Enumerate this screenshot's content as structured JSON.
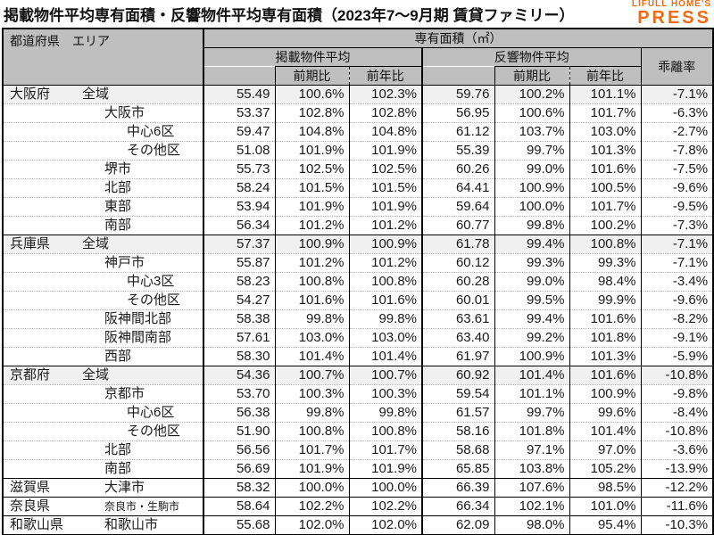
{
  "title": "掲載物件平均専有面積・反響物件平均専有面積（2023年7～9月期 賃貸ファミリー）",
  "logo": {
    "top": "LIFULL HOME'S",
    "main": "PRESS",
    "color": "#f26a14"
  },
  "colors": {
    "header_bg": "#bfbfbf",
    "highlight_row_bg": "#f0f0f0",
    "border": "#000000",
    "logo_orange": "#f26a14"
  },
  "header": {
    "corner": "都道府県　エリア",
    "area_title": "専有面積（㎡）",
    "listed_avg": "掲載物件平均",
    "inquiry_avg": "反響物件平均",
    "gap_rate": "乖離率",
    "qoq": "前期比",
    "yoy": "前年比"
  },
  "chart_data": {
    "type": "table",
    "title": "掲載物件平均専有面積・反響物件平均専有面積（2023年7～9月期 賃貸ファミリー）",
    "columns": [
      "都道府県",
      "エリア",
      "掲載物件平均 専有面積(㎡)",
      "掲載 前期比",
      "掲載 前年比",
      "反響物件平均 専有面積(㎡)",
      "反響 前期比",
      "反響 前年比",
      "乖離率"
    ],
    "rows": [
      {
        "pref": "大阪府",
        "area": "全域",
        "level": 1,
        "group_start": true,
        "highlight": true,
        "listed": "55.49",
        "listed_qoq": "100.6%",
        "listed_yoy": "102.3%",
        "inq": "59.76",
        "inq_qoq": "100.2%",
        "inq_yoy": "101.1%",
        "gap": "-7.1%"
      },
      {
        "pref": "",
        "area": "大阪市",
        "level": 2,
        "listed": "53.37",
        "listed_qoq": "102.8%",
        "listed_yoy": "102.8%",
        "inq": "56.95",
        "inq_qoq": "100.6%",
        "inq_yoy": "101.7%",
        "gap": "-6.3%"
      },
      {
        "pref": "",
        "area": "中心6区",
        "level": 3,
        "listed": "59.47",
        "listed_qoq": "104.8%",
        "listed_yoy": "104.8%",
        "inq": "61.12",
        "inq_qoq": "103.7%",
        "inq_yoy": "103.0%",
        "gap": "-2.7%"
      },
      {
        "pref": "",
        "area": "その他区",
        "level": 3,
        "listed": "51.08",
        "listed_qoq": "101.9%",
        "listed_yoy": "101.9%",
        "inq": "55.39",
        "inq_qoq": "99.7%",
        "inq_yoy": "101.3%",
        "gap": "-7.8%"
      },
      {
        "pref": "",
        "area": "堺市",
        "level": 2,
        "listed": "55.73",
        "listed_qoq": "102.5%",
        "listed_yoy": "102.5%",
        "inq": "60.26",
        "inq_qoq": "99.0%",
        "inq_yoy": "101.6%",
        "gap": "-7.5%"
      },
      {
        "pref": "",
        "area": "北部",
        "level": 2,
        "listed": "58.24",
        "listed_qoq": "101.5%",
        "listed_yoy": "101.5%",
        "inq": "64.41",
        "inq_qoq": "100.9%",
        "inq_yoy": "100.5%",
        "gap": "-9.6%"
      },
      {
        "pref": "",
        "area": "東部",
        "level": 2,
        "listed": "53.94",
        "listed_qoq": "101.9%",
        "listed_yoy": "101.9%",
        "inq": "59.64",
        "inq_qoq": "100.0%",
        "inq_yoy": "101.7%",
        "gap": "-9.5%"
      },
      {
        "pref": "",
        "area": "南部",
        "level": 2,
        "listed": "56.34",
        "listed_qoq": "101.2%",
        "listed_yoy": "101.2%",
        "inq": "60.77",
        "inq_qoq": "99.8%",
        "inq_yoy": "100.2%",
        "gap": "-7.3%"
      },
      {
        "pref": "兵庫県",
        "area": "全域",
        "level": 1,
        "group_start": true,
        "highlight": true,
        "listed": "57.37",
        "listed_qoq": "100.9%",
        "listed_yoy": "100.9%",
        "inq": "61.78",
        "inq_qoq": "99.4%",
        "inq_yoy": "100.8%",
        "gap": "-7.1%"
      },
      {
        "pref": "",
        "area": "神戸市",
        "level": 2,
        "listed": "55.87",
        "listed_qoq": "101.2%",
        "listed_yoy": "101.2%",
        "inq": "60.12",
        "inq_qoq": "99.3%",
        "inq_yoy": "99.3%",
        "gap": "-7.1%"
      },
      {
        "pref": "",
        "area": "中心3区",
        "level": 3,
        "listed": "58.23",
        "listed_qoq": "100.8%",
        "listed_yoy": "100.8%",
        "inq": "60.28",
        "inq_qoq": "99.0%",
        "inq_yoy": "98.4%",
        "gap": "-3.4%"
      },
      {
        "pref": "",
        "area": "その他区",
        "level": 3,
        "listed": "54.27",
        "listed_qoq": "101.6%",
        "listed_yoy": "101.6%",
        "inq": "60.01",
        "inq_qoq": "99.5%",
        "inq_yoy": "99.9%",
        "gap": "-9.6%"
      },
      {
        "pref": "",
        "area": "阪神間北部",
        "level": 2,
        "listed": "58.38",
        "listed_qoq": "99.8%",
        "listed_yoy": "99.8%",
        "inq": "63.61",
        "inq_qoq": "99.4%",
        "inq_yoy": "101.6%",
        "gap": "-8.2%"
      },
      {
        "pref": "",
        "area": "阪神間南部",
        "level": 2,
        "listed": "57.61",
        "listed_qoq": "103.0%",
        "listed_yoy": "103.0%",
        "inq": "63.40",
        "inq_qoq": "99.2%",
        "inq_yoy": "101.8%",
        "gap": "-9.1%"
      },
      {
        "pref": "",
        "area": "西部",
        "level": 2,
        "listed": "58.30",
        "listed_qoq": "101.4%",
        "listed_yoy": "101.4%",
        "inq": "61.97",
        "inq_qoq": "100.9%",
        "inq_yoy": "101.3%",
        "gap": "-5.9%"
      },
      {
        "pref": "京都府",
        "area": "全域",
        "level": 1,
        "group_start": true,
        "highlight": true,
        "listed": "54.36",
        "listed_qoq": "100.7%",
        "listed_yoy": "100.7%",
        "inq": "60.92",
        "inq_qoq": "101.4%",
        "inq_yoy": "101.6%",
        "gap": "-10.8%"
      },
      {
        "pref": "",
        "area": "京都市",
        "level": 2,
        "listed": "53.70",
        "listed_qoq": "100.3%",
        "listed_yoy": "100.3%",
        "inq": "59.54",
        "inq_qoq": "101.1%",
        "inq_yoy": "100.9%",
        "gap": "-9.8%"
      },
      {
        "pref": "",
        "area": "中心6区",
        "level": 3,
        "listed": "56.38",
        "listed_qoq": "99.8%",
        "listed_yoy": "99.8%",
        "inq": "61.57",
        "inq_qoq": "99.7%",
        "inq_yoy": "99.6%",
        "gap": "-8.4%"
      },
      {
        "pref": "",
        "area": "その他区",
        "level": 3,
        "listed": "51.90",
        "listed_qoq": "100.8%",
        "listed_yoy": "100.8%",
        "inq": "58.16",
        "inq_qoq": "101.8%",
        "inq_yoy": "101.4%",
        "gap": "-10.8%"
      },
      {
        "pref": "",
        "area": "北部",
        "level": 2,
        "listed": "56.56",
        "listed_qoq": "101.7%",
        "listed_yoy": "101.7%",
        "inq": "58.68",
        "inq_qoq": "97.1%",
        "inq_yoy": "97.0%",
        "gap": "-3.6%"
      },
      {
        "pref": "",
        "area": "南部",
        "level": 2,
        "listed": "56.69",
        "listed_qoq": "101.9%",
        "listed_yoy": "101.9%",
        "inq": "65.85",
        "inq_qoq": "103.8%",
        "inq_yoy": "105.2%",
        "gap": "-13.9%"
      },
      {
        "pref": "滋賀県",
        "area": "大津市",
        "level": 2,
        "group_start": true,
        "listed": "58.32",
        "listed_qoq": "100.0%",
        "listed_yoy": "100.0%",
        "inq": "66.39",
        "inq_qoq": "107.6%",
        "inq_yoy": "98.5%",
        "gap": "-12.2%"
      },
      {
        "pref": "奈良県",
        "area": "奈良市・生駒市",
        "level": 2,
        "small": true,
        "group_start": true,
        "listed": "58.64",
        "listed_qoq": "102.2%",
        "listed_yoy": "102.2%",
        "inq": "66.34",
        "inq_qoq": "102.1%",
        "inq_yoy": "101.0%",
        "gap": "-11.6%"
      },
      {
        "pref": "和歌山県",
        "area": "和歌山市",
        "level": 2,
        "group_start": true,
        "listed": "55.68",
        "listed_qoq": "102.0%",
        "listed_yoy": "102.0%",
        "inq": "62.09",
        "inq_qoq": "98.0%",
        "inq_yoy": "95.4%",
        "gap": "-10.3%"
      }
    ]
  }
}
